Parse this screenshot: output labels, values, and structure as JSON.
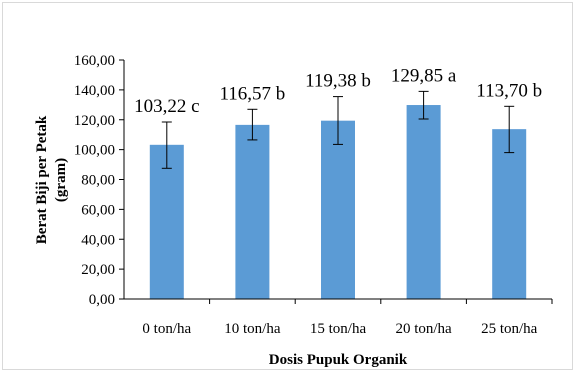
{
  "chart_data": {
    "type": "bar",
    "categories": [
      "0 ton/ha",
      "10 ton/ha",
      "15 ton/ha",
      "20 ton/ha",
      "25 ton/ha"
    ],
    "values": [
      103.22,
      116.57,
      119.38,
      129.85,
      113.7
    ],
    "error_low": [
      87.5,
      106.5,
      103.5,
      120.5,
      98.0
    ],
    "error_high": [
      118.5,
      127.0,
      135.5,
      139.0,
      129.0
    ],
    "data_labels": [
      "103,22 c",
      "116,57 b",
      "119,38 b",
      "129,85 a",
      "113,70 b"
    ],
    "y_ticks": [
      "0,00",
      "20,00",
      "40,00",
      "60,00",
      "80,00",
      "100,00",
      "120,00",
      "140,00",
      "160,00"
    ],
    "xlabel": "Dosis Pupuk Organik",
    "ylabel_line1": "Berat  Biji per Petak",
    "ylabel_line2": "(gram)",
    "ylim": [
      0,
      160
    ],
    "grid": false,
    "bar_color": "#5b9bd5"
  }
}
